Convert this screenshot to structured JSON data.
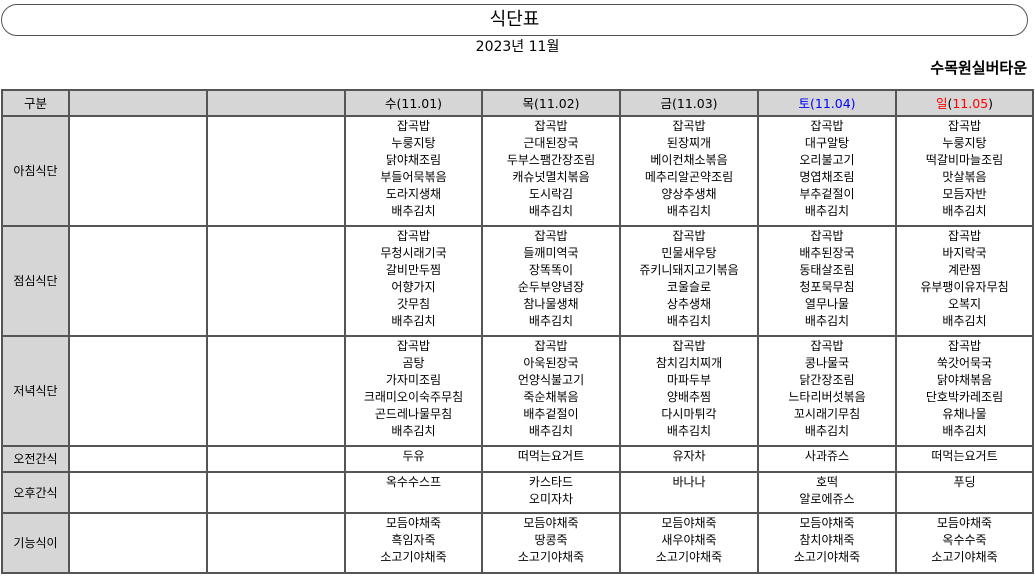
{
  "header": {
    "title": "식단표",
    "month": "2023년 11월",
    "organization": "수목원실버타운"
  },
  "colors": {
    "saturday": "#0000ff",
    "sunday": "#ff0000",
    "header_bg": "#d6d6d6"
  },
  "table": {
    "category_header": "구분",
    "days": [
      {
        "day": "수",
        "date": "(11.01)"
      },
      {
        "day": "목",
        "date": "(11.02)"
      },
      {
        "day": "금",
        "date": "(11.03)"
      },
      {
        "day": "토",
        "date": "(11.04)"
      },
      {
        "day": "일",
        "date": "(11.05)"
      }
    ],
    "rows": [
      {
        "label": "아침식단",
        "cells": [
          [
            "잡곡밥",
            "누룽지탕",
            "닭야채조림",
            "부들어묵볶음",
            "도라지생채",
            "배추김치"
          ],
          [
            "잡곡밥",
            "근대된장국",
            "두부스팸간장조림",
            "캐슈넛멸치볶음",
            "도시락김",
            "배추김치"
          ],
          [
            "잡곡밥",
            "된장찌개",
            "베이컨채소볶음",
            "메추리알곤약조림",
            "양상추생채",
            "배추김치"
          ],
          [
            "잡곡밥",
            "대구알탕",
            "오리불고기",
            "명엽채조림",
            "부추겉절이",
            "배추김치"
          ],
          [
            "잡곡밥",
            "누룽지탕",
            "떡갈비마늘조림",
            "맛살볶음",
            "모듬자반",
            "배추김치"
          ]
        ]
      },
      {
        "label": "점심식단",
        "cells": [
          [
            "잡곡밥",
            "무청시래기국",
            "갈비만두찜",
            "어향가지",
            "갓무침",
            "배추김치"
          ],
          [
            "잡곡밥",
            "들깨미역국",
            "장똑똑이",
            "순두부양념장",
            "참나물생채",
            "배추김치"
          ],
          [
            "잡곡밥",
            "민물새우탕",
            "쥬키니돼지고기볶음",
            "코울슬로",
            "상추생채",
            "배추김치"
          ],
          [
            "잡곡밥",
            "배추된장국",
            "동태살조림",
            "청포묵무침",
            "열무나물",
            "배추김치"
          ],
          [
            "잡곡밥",
            "바지락국",
            "계란찜",
            "유부팽이유자무침",
            "오복지",
            "배추김치"
          ]
        ]
      },
      {
        "label": "저녁식단",
        "cells": [
          [
            "잡곡밥",
            "곰탕",
            "가자미조림",
            "크래미오이숙주무침",
            "곤드레나물무침",
            "배추김치"
          ],
          [
            "잡곡밥",
            "아욱된장국",
            "언양식불고기",
            "죽순채볶음",
            "배추겉절이",
            "배추김치"
          ],
          [
            "잡곡밥",
            "참치김치찌개",
            "마파두부",
            "양배추찜",
            "다시마튀각",
            "배추김치"
          ],
          [
            "잡곡밥",
            "콩나물국",
            "닭간장조림",
            "느타리버섯볶음",
            "꼬시래기무침",
            "배추김치"
          ],
          [
            "잡곡밥",
            "쑥갓어묵국",
            "닭야채볶음",
            "단호박카레조림",
            "유채나물",
            "배추김치"
          ]
        ]
      },
      {
        "label": "오전간식",
        "cells": [
          [
            "두유"
          ],
          [
            "떠먹는요거트"
          ],
          [
            "유자차"
          ],
          [
            "사과쥬스"
          ],
          [
            "떠먹는요거트"
          ]
        ]
      },
      {
        "label": "오후간식",
        "cells": [
          [
            "옥수수스프"
          ],
          [
            "카스타드",
            "오미자차"
          ],
          [
            "바나나"
          ],
          [
            "호떡",
            "알로에쥬스"
          ],
          [
            "푸딩"
          ]
        ]
      },
      {
        "label": "기능식이",
        "cells": [
          [
            "모듬야채죽",
            "흑임자죽",
            "소고기야채죽"
          ],
          [
            "모듬야채죽",
            "땅콩죽",
            "소고기야채죽"
          ],
          [
            "모듬야채죽",
            "새우야채죽",
            "소고기야채죽"
          ],
          [
            "모듬야채죽",
            "참치야채죽",
            "소고기야채죽"
          ],
          [
            "모듬야채죽",
            "옥수수죽",
            "소고기야채죽"
          ]
        ]
      }
    ]
  }
}
